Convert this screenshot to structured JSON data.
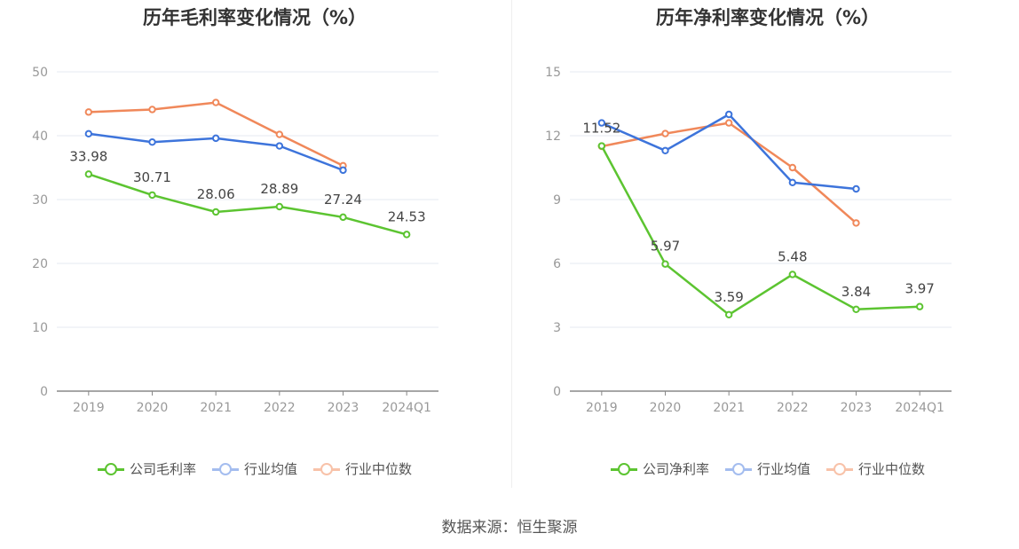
{
  "source_text": "数据来源：恒生聚源",
  "chart_data": [
    {
      "type": "line",
      "title": "历年毛利率变化情况（%）",
      "categories": [
        "2019",
        "2020",
        "2021",
        "2022",
        "2023",
        "2024Q1"
      ],
      "ylim": [
        0,
        50
      ],
      "yticks": [
        "0",
        "10",
        "20",
        "30",
        "40",
        "50"
      ],
      "grid": true,
      "legend_position": "bottom",
      "series": [
        {
          "name": "公司毛利率",
          "color": "#5cc431",
          "values": [
            33.98,
            30.71,
            28.06,
            28.89,
            27.24,
            24.53
          ],
          "labels": [
            "33.98",
            "30.71",
            "28.06",
            "28.89",
            "27.24",
            "24.53"
          ]
        },
        {
          "name": "行业均值",
          "color": "#3d74db",
          "values": [
            40.3,
            39.0,
            39.6,
            38.4,
            34.6,
            null
          ]
        },
        {
          "name": "行业中位数",
          "color": "#f0885a",
          "values": [
            43.7,
            44.1,
            45.2,
            40.2,
            35.3,
            null
          ]
        }
      ]
    },
    {
      "type": "line",
      "title": "历年净利率变化情况（%）",
      "categories": [
        "2019",
        "2020",
        "2021",
        "2022",
        "2023",
        "2024Q1"
      ],
      "ylim": [
        0,
        15
      ],
      "yticks": [
        "0",
        "3",
        "6",
        "9",
        "12",
        "15"
      ],
      "grid": true,
      "legend_position": "bottom",
      "series": [
        {
          "name": "公司净利率",
          "color": "#5cc431",
          "values": [
            11.52,
            5.97,
            3.59,
            5.48,
            3.84,
            3.97
          ],
          "labels": [
            "11.52",
            "5.97",
            "3.59",
            "5.48",
            "3.84",
            "3.97"
          ]
        },
        {
          "name": "行业均值",
          "color": "#3d74db",
          "values": [
            12.6,
            11.3,
            13.0,
            9.8,
            9.5,
            null
          ]
        },
        {
          "name": "行业中位数",
          "color": "#f0885a",
          "values": [
            11.5,
            12.1,
            12.6,
            10.5,
            7.9,
            null
          ]
        }
      ]
    }
  ]
}
